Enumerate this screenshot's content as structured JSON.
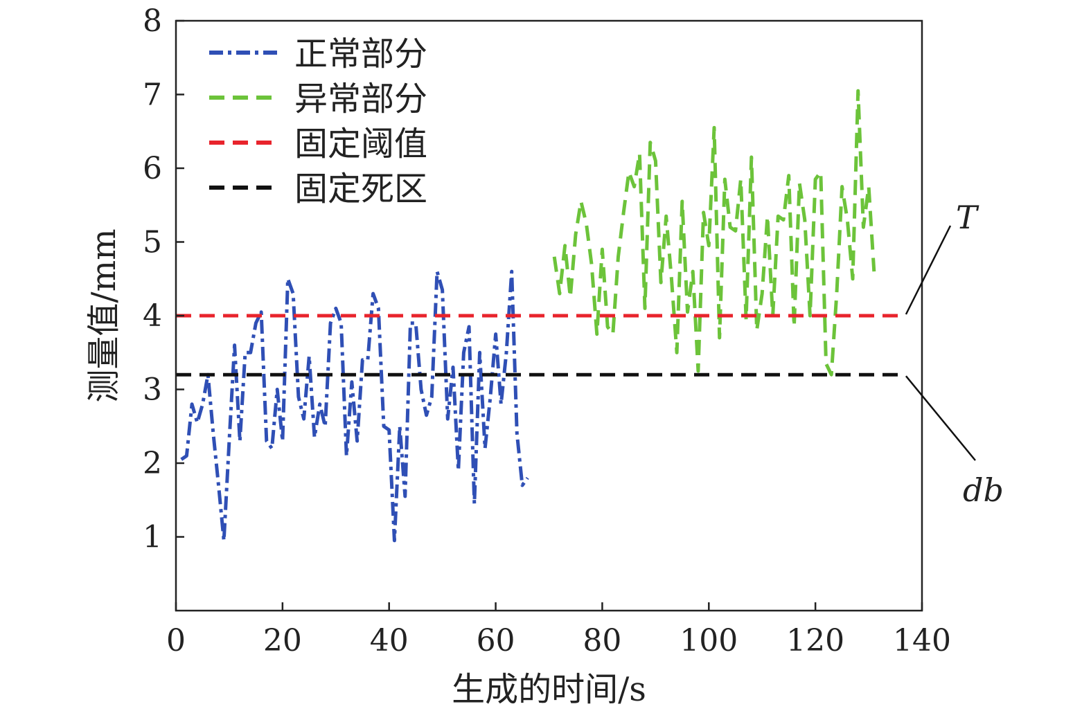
{
  "chart_data": {
    "type": "line",
    "xlabel": "生成的时间/s",
    "ylabel": "测量值/mm",
    "xlim": [
      0,
      140
    ],
    "ylim": [
      0,
      8
    ],
    "xticks": [
      0,
      20,
      40,
      60,
      80,
      100,
      120,
      140
    ],
    "yticks": [
      1,
      2,
      3,
      4,
      5,
      6,
      7,
      8
    ],
    "grid": false,
    "legend_position": "top-left",
    "series": [
      {
        "name": "正常部分",
        "style": "dashdot",
        "color": "#2f4fb5",
        "x": [
          1,
          2,
          3,
          4,
          5,
          6,
          7,
          8,
          9,
          10,
          11,
          12,
          13,
          14,
          15,
          16,
          17,
          18,
          19,
          20,
          21,
          22,
          23,
          24,
          25,
          26,
          27,
          28,
          29,
          30,
          31,
          32,
          33,
          34,
          35,
          36,
          37,
          38,
          39,
          40,
          41,
          42,
          43,
          44,
          45,
          46,
          47,
          48,
          49,
          50,
          51,
          52,
          53,
          54,
          55,
          56,
          57,
          58,
          59,
          60,
          61,
          62,
          63,
          64,
          65,
          66,
          67,
          68,
          69,
          70
        ],
        "values": [
          2.05,
          2.1,
          2.8,
          2.55,
          2.8,
          3.2,
          2.4,
          1.7,
          0.95,
          2.3,
          3.6,
          2.3,
          3.5,
          3.5,
          3.9,
          4.05,
          2.3,
          2.2,
          3.0,
          2.3,
          4.5,
          4.3,
          2.9,
          2.6,
          3.45,
          2.35,
          2.8,
          2.5,
          3.9,
          4.1,
          3.9,
          2.1,
          3.1,
          2.3,
          3.4,
          3.4,
          4.3,
          4.1,
          2.5,
          2.45,
          0.95,
          2.5,
          1.55,
          3.9,
          3.9,
          3.0,
          2.65,
          2.9,
          4.6,
          4.35,
          2.6,
          3.3,
          1.9,
          3.5,
          3.85,
          1.45,
          3.5,
          2.2,
          2.9,
          3.75,
          2.8,
          3.5,
          4.6,
          2.4,
          1.7,
          1.8,
          null,
          null,
          null,
          null
        ]
      },
      {
        "name": "异常部分",
        "style": "dashed",
        "color": "#6cc33a",
        "x": [
          71,
          72,
          73,
          74,
          75,
          76,
          77,
          78,
          79,
          80,
          81,
          82,
          83,
          84,
          85,
          86,
          87,
          88,
          89,
          90,
          91,
          92,
          93,
          94,
          95,
          96,
          97,
          98,
          99,
          100,
          101,
          102,
          103,
          104,
          105,
          106,
          107,
          108,
          109,
          110,
          111,
          112,
          113,
          114,
          115,
          116,
          117,
          118,
          119,
          120,
          121,
          122,
          123,
          124,
          125,
          126,
          127,
          128,
          129,
          130,
          131,
          132,
          133,
          134,
          135,
          136,
          137,
          138,
          139,
          140
        ],
        "values": [
          4.8,
          4.3,
          4.95,
          4.25,
          5.1,
          5.55,
          5.25,
          4.7,
          3.75,
          4.9,
          3.85,
          3.75,
          4.8,
          5.4,
          5.95,
          5.75,
          6.2,
          4.1,
          6.35,
          6.1,
          4.45,
          5.35,
          4.5,
          3.5,
          5.55,
          4.05,
          4.6,
          3.25,
          5.4,
          4.95,
          6.55,
          3.7,
          5.85,
          5.2,
          5.15,
          5.85,
          3.95,
          6.15,
          3.8,
          4.3,
          5.35,
          4.0,
          5.35,
          5.3,
          5.9,
          3.85,
          5.8,
          5.3,
          4.0,
          5.85,
          5.95,
          3.35,
          3.2,
          4.3,
          5.75,
          5.3,
          4.5,
          7.05,
          5.2,
          5.75,
          4.6,
          null,
          null,
          null,
          null,
          null,
          null,
          null,
          null,
          null
        ]
      },
      {
        "name": "固定阈值",
        "style": "dashed",
        "color": "#e8242c",
        "x": [
          0,
          137
        ],
        "values": [
          4.0,
          4.0
        ]
      },
      {
        "name": "固定死区",
        "style": "dashed",
        "color": "#111111",
        "x": [
          0,
          137
        ],
        "values": [
          3.2,
          3.2
        ]
      }
    ],
    "annotations": [
      {
        "text": "T",
        "points_to": "固定阈值"
      },
      {
        "text": "db",
        "points_to": "固定死区"
      }
    ]
  }
}
